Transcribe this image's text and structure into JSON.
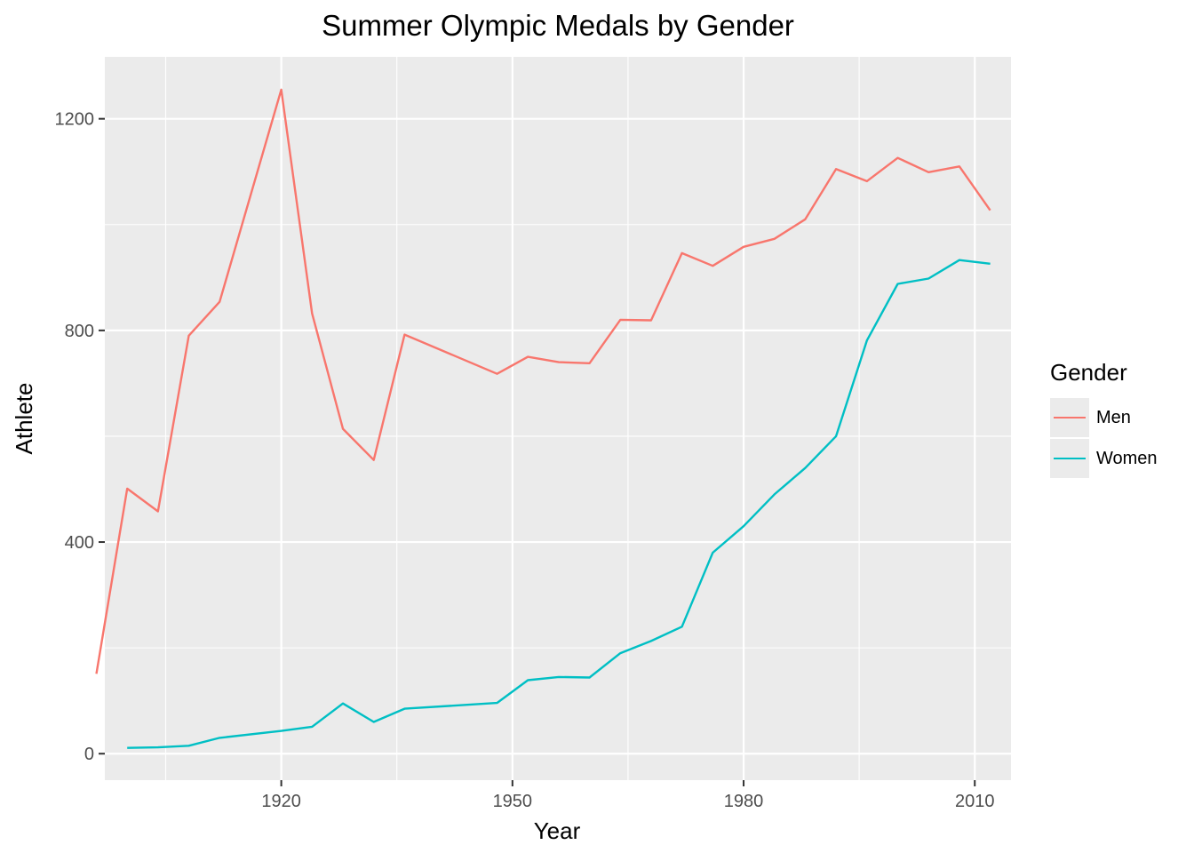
{
  "chart_data": {
    "type": "line",
    "title": "Summer Olympic Medals by Gender",
    "xlabel": "Year",
    "ylabel": "Athlete",
    "xlim": [
      1897.1,
      2014.7
    ],
    "ylim": [
      -50,
      1317
    ],
    "x_ticks": [
      1920,
      1950,
      1980,
      2010
    ],
    "x_minor_ticks": [
      1905,
      1935,
      1965,
      1995
    ],
    "y_ticks": [
      0,
      400,
      800,
      1200
    ],
    "y_minor_ticks": [
      200,
      600,
      1000
    ],
    "grid": true,
    "legend_title": "Gender",
    "legend_position": "right",
    "series": [
      {
        "name": "Men",
        "color": "#F8766D",
        "x": [
          1896,
          1900,
          1904,
          1908,
          1912,
          1920,
          1924,
          1928,
          1932,
          1936,
          1948,
          1952,
          1956,
          1960,
          1964,
          1968,
          1972,
          1976,
          1980,
          1984,
          1988,
          1992,
          1996,
          2000,
          2004,
          2008,
          2012
        ],
        "y": [
          151,
          501,
          458,
          790,
          854,
          1255,
          832,
          614,
          555,
          792,
          718,
          750,
          740,
          738,
          820,
          819,
          946,
          922,
          958,
          973,
          1010,
          1105,
          1082,
          1126,
          1099,
          1110,
          1027
        ]
      },
      {
        "name": "Women",
        "color": "#00BFC4",
        "x": [
          1900,
          1904,
          1908,
          1912,
          1920,
          1924,
          1928,
          1932,
          1936,
          1948,
          1952,
          1956,
          1960,
          1964,
          1968,
          1972,
          1976,
          1980,
          1984,
          1988,
          1992,
          1996,
          2000,
          2004,
          2008,
          2012
        ],
        "y": [
          11,
          12,
          15,
          30,
          43,
          51,
          95,
          60,
          85,
          96,
          139,
          145,
          144,
          190,
          213,
          240,
          380,
          430,
          490,
          540,
          600,
          781,
          888,
          898,
          933,
          926
        ]
      }
    ]
  }
}
